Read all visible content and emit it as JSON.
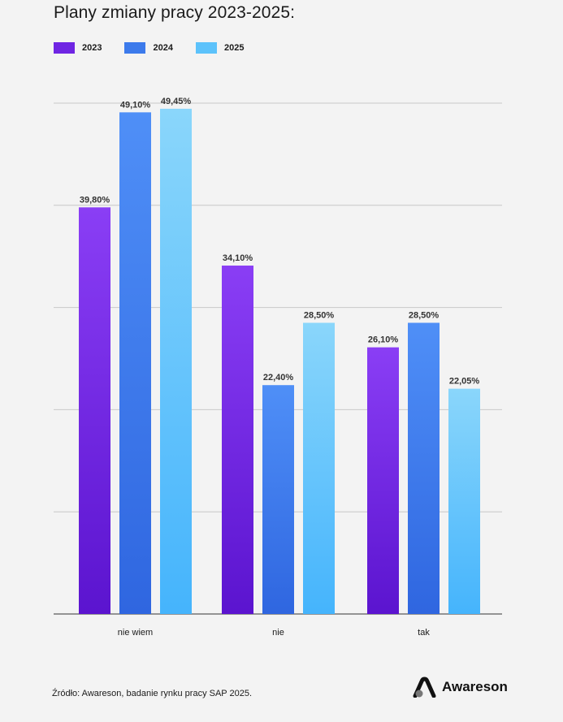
{
  "header": {
    "title": "Plany zmiany pracy 2023-2025:"
  },
  "colors": {
    "s2023_top": "#8a3ef5",
    "s2023_bottom": "#5b14cf",
    "s2024_top": "#4f8ff7",
    "s2024_bottom": "#2f66e0",
    "s2025_top": "#8ad6fb",
    "s2025_bottom": "#45b4fc",
    "grid": "#c8c8c8",
    "axis": "#333333"
  },
  "legend": [
    {
      "label": "2023",
      "color": "#6f25e3"
    },
    {
      "label": "2024",
      "color": "#3c7aeb"
    },
    {
      "label": "2025",
      "color": "#5cc2fb"
    }
  ],
  "chart_data": {
    "type": "bar",
    "title": "Plany zmiany pracy 2023-2025:",
    "categories": [
      "nie wiem",
      "nie",
      "tak"
    ],
    "series": [
      {
        "name": "2023",
        "values": [
          39.8,
          34.1,
          26.1
        ],
        "labels": [
          "39,80%",
          "34,10%",
          "26,10%"
        ]
      },
      {
        "name": "2024",
        "values": [
          49.1,
          22.4,
          28.5
        ],
        "labels": [
          "49,10%",
          "22,40%",
          "28,50%"
        ]
      },
      {
        "name": "2025",
        "values": [
          49.45,
          28.5,
          22.05
        ],
        "labels": [
          "49,45%",
          "28,50%",
          "22,05%"
        ]
      }
    ],
    "ylim": [
      0,
      50
    ],
    "grid": true,
    "legend_position": "top-left"
  },
  "footer": {
    "source": "Źródło: Awareson, badanie rynku pracy SAP 2025.",
    "logo_text": "Awareson"
  }
}
